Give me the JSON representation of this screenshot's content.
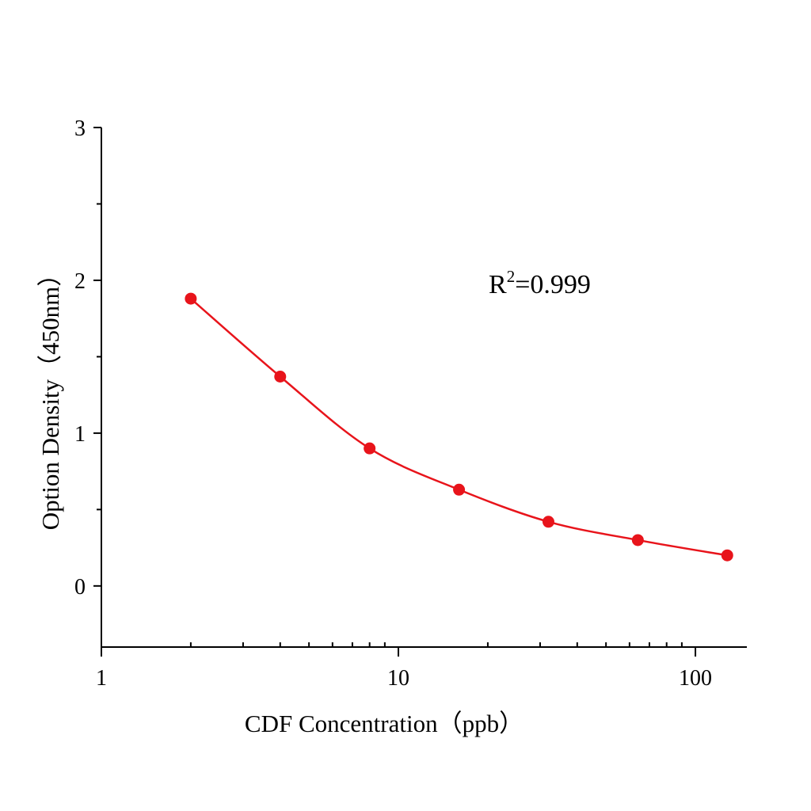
{
  "chart_data": {
    "type": "scatter",
    "title": "",
    "xlabel": "CDF Concentration（ppb）",
    "ylabel": "Option Density（450nm）",
    "x_scale": "log",
    "xlim": [
      1,
      149
    ],
    "ylim": [
      -0.4,
      3
    ],
    "x_ticks": [
      "1",
      "10",
      "100"
    ],
    "y_ticks": [
      "0",
      "1",
      "2",
      "3"
    ],
    "grid": false,
    "annotation": {
      "base": "R",
      "sup": "2",
      "rest": "=0.999"
    },
    "series": [
      {
        "x": [
          2,
          4,
          8,
          16,
          32,
          64,
          128
        ],
        "y": [
          1.88,
          1.37,
          0.9,
          0.63,
          0.42,
          0.3,
          0.2
        ],
        "color": "#e8141b",
        "fit_curve": true
      }
    ]
  }
}
